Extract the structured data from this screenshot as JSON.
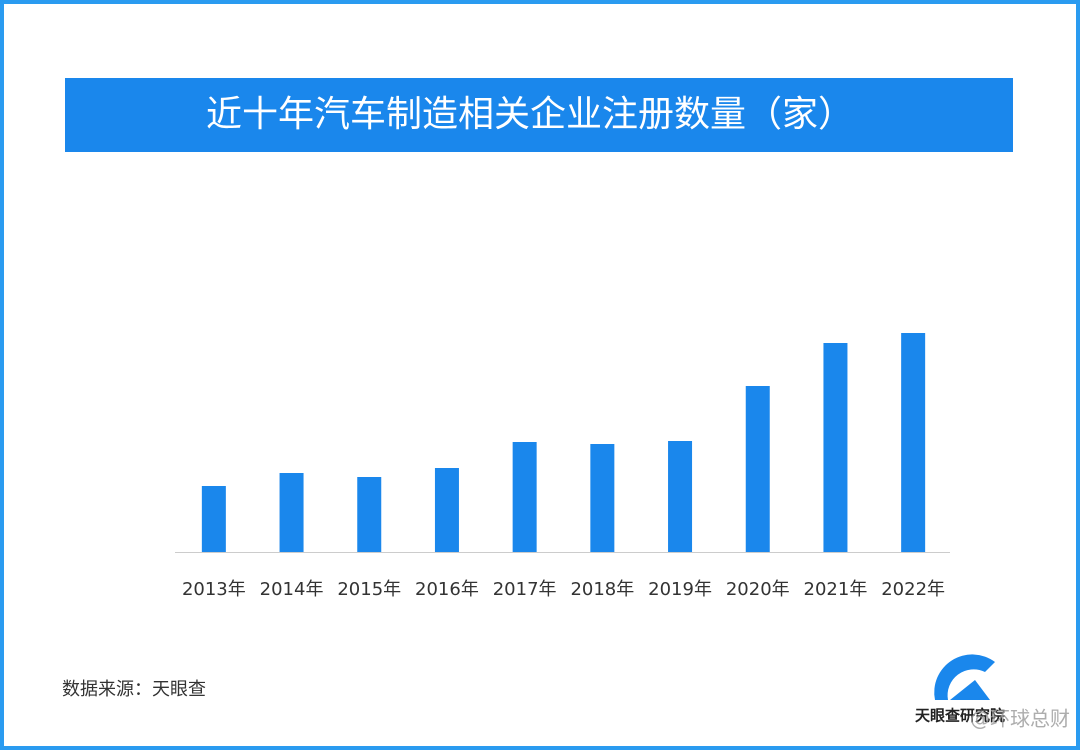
{
  "chart_data": {
    "type": "bar",
    "title": "近十年汽车制造相关企业注册数量（家）",
    "categories": [
      "2013年",
      "2014年",
      "2015年",
      "2016年",
      "2017年",
      "2018年",
      "2019年",
      "2020年",
      "2021年",
      "2022年"
    ],
    "values": [
      66,
      79,
      75,
      84,
      110,
      108,
      111,
      166,
      209,
      219
    ],
    "color": "#1a87ec",
    "source": "数据来源：天眼查"
  },
  "logo": "天眼查研究院",
  "watermark": "@环球总财"
}
